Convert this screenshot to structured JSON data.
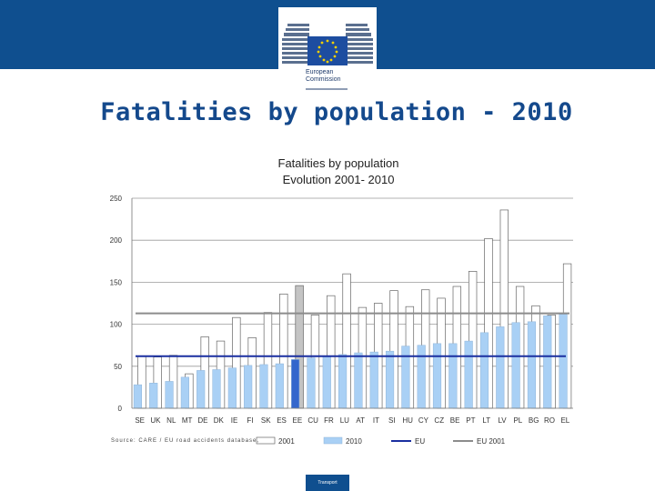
{
  "header": {
    "logo_line1": "European",
    "logo_line2": "Commission"
  },
  "slide": {
    "title": "Fatalities by population - 2010",
    "source_note": "Source: CARE / EU road accidents database,",
    "footer_label": "Transport"
  },
  "colors": {
    "header_blue": "#0f4f8f",
    "bar_2001_fill": "#ffffff",
    "bar_2010_fill": "#a9d0f5",
    "eu_line": "#1a2fa0",
    "eu2001_line": "#8c8c8c",
    "title_blue": "#14498c"
  },
  "chart_data": {
    "type": "bar",
    "title": "Fatalities by population",
    "subtitle": "Evolution 2001- 2010",
    "xlabel": "",
    "ylabel": "",
    "ylim": [
      0,
      250
    ],
    "yticks": [
      0,
      50,
      100,
      150,
      200,
      250
    ],
    "grid": true,
    "categories": [
      "SE",
      "UK",
      "NL",
      "MT",
      "DE",
      "DK",
      "IE",
      "FI",
      "SK",
      "ES",
      "EE",
      "CU",
      "FR",
      "LU",
      "AT",
      "IT",
      "SI",
      "HU",
      "CY",
      "CZ",
      "BE",
      "PT",
      "LT",
      "LV",
      "PL",
      "BG",
      "RO",
      "EL"
    ],
    "series": [
      {
        "name": "2001",
        "values": [
          62,
          61,
          63,
          41,
          85,
          80,
          108,
          84,
          114,
          136,
          146,
          111,
          134,
          160,
          120,
          125,
          140,
          121,
          141,
          131,
          145,
          163,
          202,
          236,
          145,
          122,
          111,
          172
        ]
      },
      {
        "name": "2010",
        "values": [
          28,
          30,
          32,
          37,
          45,
          46,
          48,
          51,
          52,
          53,
          58,
          60,
          62,
          64,
          66,
          67,
          68,
          74,
          75,
          77,
          77,
          80,
          90,
          97,
          102,
          103,
          110,
          112
        ]
      }
    ],
    "highlighted_2010": [
      "EE"
    ],
    "highlighted_2001": [
      "EE"
    ],
    "reference_lines": [
      {
        "name": "EU",
        "value": 62
      },
      {
        "name": "EU 2001",
        "value": 113
      }
    ],
    "legend": {
      "position": "bottom",
      "entries": [
        "2001",
        "2010",
        "EU",
        "EU 2001"
      ]
    }
  }
}
